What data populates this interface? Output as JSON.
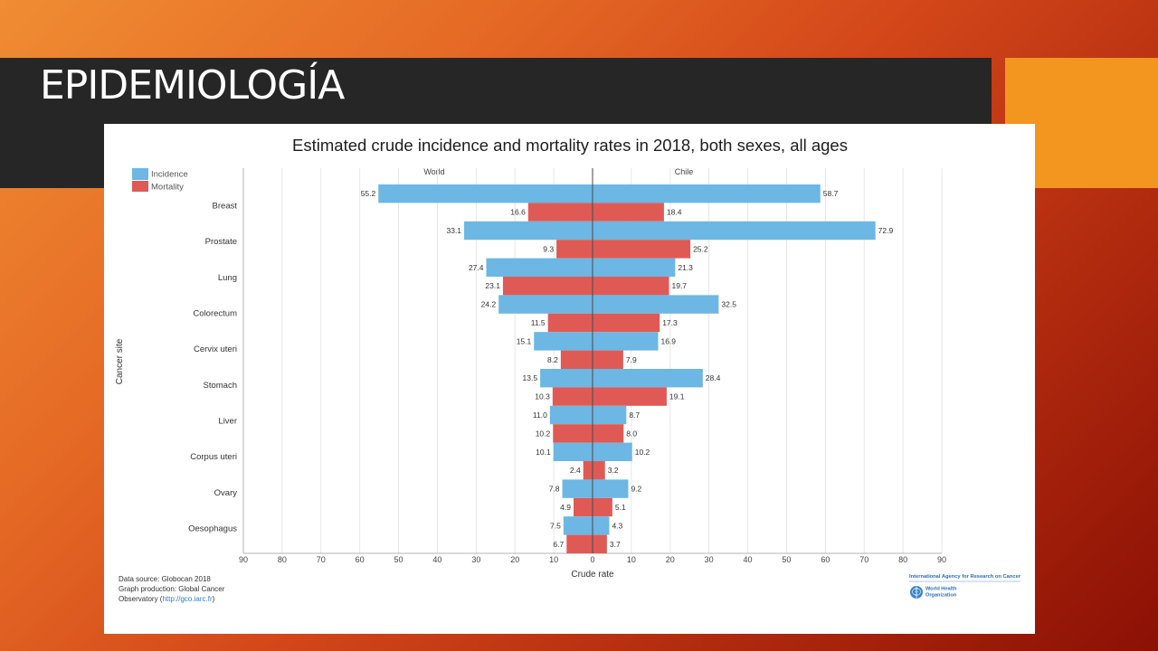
{
  "slide": {
    "title": "EPIDEMIOLOGÍA"
  },
  "theme": {
    "title_bar": "#262626",
    "accent": "#f29620",
    "link": "#2f7ec4",
    "logo": "#2b6cb5"
  },
  "chart_data": {
    "type": "bar",
    "orientation": "horizontal",
    "title": "Estimated crude incidence and mortality rates in 2018, both sexes, all ages",
    "xlabel": "Crude rate",
    "ylabel": "Cancer site",
    "xlim": [
      0,
      90
    ],
    "xticks": [
      90,
      80,
      70,
      60,
      50,
      40,
      30,
      20,
      10,
      0,
      10,
      20,
      30,
      40,
      50,
      60,
      70,
      80,
      90
    ],
    "grid": true,
    "legend_position": "top-left",
    "panels": [
      "World",
      "Chile"
    ],
    "categories": [
      "Breast",
      "Prostate",
      "Lung",
      "Colorectum",
      "Cervix uteri",
      "Stomach",
      "Liver",
      "Corpus uteri",
      "Ovary",
      "Oesophagus"
    ],
    "series": [
      {
        "name": "Incidence",
        "color": "#6cb7e3",
        "values": {
          "World": [
            55.2,
            33.1,
            27.4,
            24.2,
            15.1,
            13.5,
            11.0,
            10.1,
            7.8,
            7.5
          ],
          "Chile": [
            58.7,
            72.9,
            21.3,
            32.5,
            16.9,
            28.4,
            8.7,
            10.2,
            9.2,
            4.3
          ]
        }
      },
      {
        "name": "Mortality",
        "color": "#e05a55",
        "values": {
          "World": [
            16.6,
            9.3,
            23.1,
            11.5,
            8.2,
            10.3,
            10.2,
            2.4,
            4.9,
            6.7
          ],
          "Chile": [
            18.4,
            25.2,
            19.7,
            17.3,
            7.9,
            19.1,
            8.0,
            3.2,
            5.1,
            3.7
          ]
        }
      }
    ]
  },
  "footer": {
    "source": "Data source: Globocan 2018",
    "production": "Graph production: Global Cancer",
    "observatory_prefix": "Observatory (",
    "observatory_url": "http://gco.iarc.fr",
    "observatory_suffix": ")"
  },
  "logos": {
    "iarc": "International Agency for Research on Cancer",
    "who_line1": "World Health",
    "who_line2": "Organization"
  }
}
